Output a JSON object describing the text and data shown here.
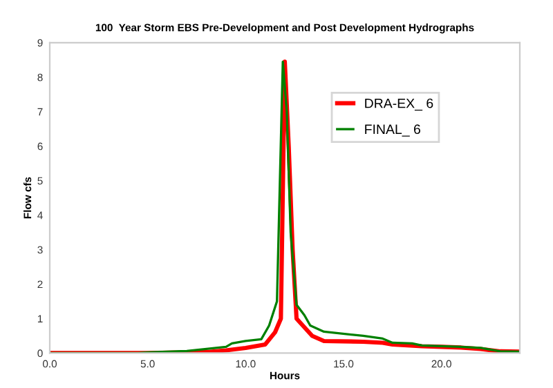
{
  "chart_data": {
    "type": "line",
    "title": "100  Year Storm EBS Pre-Development and Post Development Hydrographs",
    "xlabel": "Hours",
    "ylabel": "Flow cfs",
    "xlim": [
      0,
      24
    ],
    "xticks": [
      {
        "value": 0,
        "label": "0.0"
      },
      {
        "value": 5,
        "label": "5.0"
      },
      {
        "value": 10,
        "label": "10.0"
      },
      {
        "value": 15,
        "label": "15.0"
      },
      {
        "value": 20,
        "label": "20.0"
      }
    ],
    "ylim": [
      0,
      9
    ],
    "yticks": [
      0,
      1,
      2,
      3,
      4,
      5,
      6,
      7,
      8,
      9
    ],
    "grid": false,
    "legend": "top right",
    "marker": "none",
    "line_style": "solid",
    "series": [
      {
        "name": "DRA-EX_ 6",
        "color": "#ff0000",
        "x": [
          0,
          5,
          7,
          8,
          9,
          10,
          11,
          11.5,
          11.8,
          12.0,
          12.2,
          12.4,
          12.6,
          13,
          13.4,
          14,
          16,
          17,
          17.5,
          19,
          20,
          21,
          22,
          23,
          24
        ],
        "values": [
          0,
          0,
          0.02,
          0.03,
          0.08,
          0.15,
          0.25,
          0.6,
          1.0,
          8.45,
          6,
          3,
          1.0,
          0.75,
          0.5,
          0.35,
          0.33,
          0.3,
          0.25,
          0.2,
          0.18,
          0.16,
          0.12,
          0.05,
          0.04
        ]
      },
      {
        "name": "FINAL_ 6",
        "color": "#008000",
        "x": [
          0,
          4.5,
          5,
          7,
          8,
          9,
          9.3,
          10,
          10.8,
          11.2,
          11.6,
          11.9,
          12.1,
          12.3,
          12.6,
          13,
          13.3,
          14,
          16,
          17,
          17.5,
          18.5,
          19,
          20,
          21,
          22,
          22.5,
          23,
          24
        ],
        "values": [
          0,
          0,
          0.02,
          0.06,
          0.12,
          0.18,
          0.28,
          0.35,
          0.4,
          0.8,
          1.5,
          8.45,
          7,
          3.5,
          1.4,
          1.1,
          0.8,
          0.62,
          0.5,
          0.42,
          0.3,
          0.28,
          0.22,
          0.2,
          0.18,
          0.15,
          0.1,
          0.05,
          0.04
        ]
      }
    ]
  }
}
